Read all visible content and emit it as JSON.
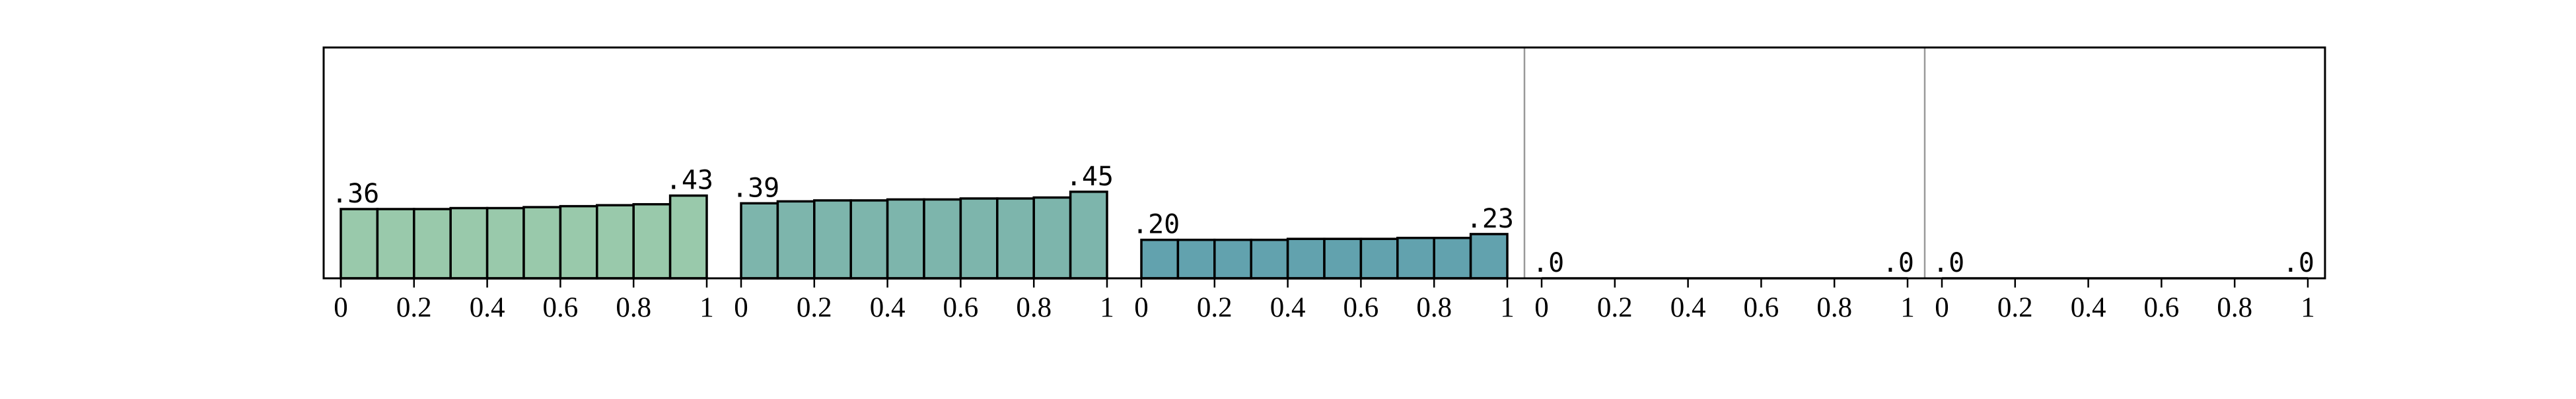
{
  "colors": {
    "frame": "#000000",
    "divider": "#999999",
    "bar_edge": "#000000"
  },
  "chart_data": {
    "type": "bar",
    "title": "",
    "xlabel": "",
    "ylabel": "",
    "ylim": [
      0,
      1.2
    ],
    "grid": false,
    "legend": "none",
    "panels": [
      {
        "name": "",
        "color": "#99c9ab",
        "xlim": [
          0,
          1
        ],
        "x_ticks": [
          "0",
          "0.2",
          "0.4",
          "0.6",
          "0.8",
          "1"
        ],
        "bin_edges": [
          0,
          0.1,
          0.2,
          0.3,
          0.4,
          0.5,
          0.6,
          0.7,
          0.8,
          0.9,
          1.0
        ],
        "values": [
          0.36,
          0.36,
          0.36,
          0.365,
          0.365,
          0.37,
          0.375,
          0.38,
          0.385,
          0.43
        ],
        "first_label": ".36",
        "last_label": ".43"
      },
      {
        "name": "",
        "color": "#7db5ac",
        "xlim": [
          0,
          1
        ],
        "x_ticks": [
          "0",
          "0.2",
          "0.4",
          "0.6",
          "0.8",
          "1"
        ],
        "bin_edges": [
          0,
          0.1,
          0.2,
          0.3,
          0.4,
          0.5,
          0.6,
          0.7,
          0.8,
          0.9,
          1.0
        ],
        "values": [
          0.39,
          0.4,
          0.405,
          0.405,
          0.41,
          0.41,
          0.415,
          0.415,
          0.42,
          0.45
        ],
        "first_label": ".39",
        "last_label": ".45"
      },
      {
        "name": "",
        "color": "#62a2ae",
        "xlim": [
          0,
          1
        ],
        "x_ticks": [
          "0",
          "0.2",
          "0.4",
          "0.6",
          "0.8",
          "1"
        ],
        "bin_edges": [
          0,
          0.1,
          0.2,
          0.3,
          0.4,
          0.5,
          0.6,
          0.7,
          0.8,
          0.9,
          1.0
        ],
        "values": [
          0.2,
          0.2,
          0.2,
          0.2,
          0.205,
          0.205,
          0.205,
          0.21,
          0.21,
          0.23
        ],
        "first_label": ".20",
        "last_label": ".23"
      },
      {
        "name": "",
        "color": "#4f8ea8",
        "xlim": [
          0,
          1
        ],
        "x_ticks": [
          "0",
          "0.2",
          "0.4",
          "0.6",
          "0.8",
          "1"
        ],
        "bin_edges": [
          0,
          0.1,
          0.2,
          0.3,
          0.4,
          0.5,
          0.6,
          0.7,
          0.8,
          0.9,
          1.0
        ],
        "values": [
          0,
          0,
          0,
          0,
          0,
          0,
          0,
          0,
          0,
          0
        ],
        "first_label": ".0",
        "last_label": ".0"
      },
      {
        "name": "",
        "color": "#3f7aa0",
        "xlim": [
          0,
          1
        ],
        "x_ticks": [
          "0",
          "0.2",
          "0.4",
          "0.6",
          "0.8",
          "1"
        ],
        "bin_edges": [
          0,
          0.1,
          0.2,
          0.3,
          0.4,
          0.5,
          0.6,
          0.7,
          0.8,
          0.9,
          1.0
        ],
        "values": [
          0,
          0,
          0,
          0,
          0,
          0,
          0,
          0,
          0,
          0
        ],
        "first_label": ".0",
        "last_label": ".0"
      }
    ]
  }
}
